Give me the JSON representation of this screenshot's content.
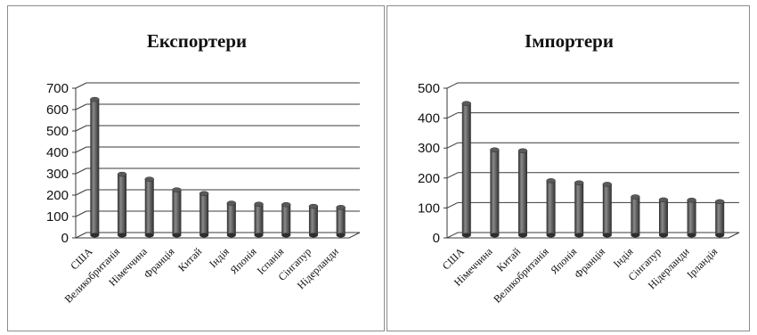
{
  "chart_data": [
    {
      "type": "bar",
      "title": "Експортери",
      "categories": [
        "США",
        "Великобританія",
        "Німеччина",
        "Франція",
        "Китай",
        "Індія",
        "Японія",
        "Іспанія",
        "Сінгапур",
        "Нідерланди"
      ],
      "values": [
        635,
        285,
        262,
        212,
        195,
        150,
        145,
        143,
        135,
        130
      ],
      "ylim": [
        0,
        700
      ],
      "yticks": [
        "0",
        "100",
        "200",
        "300",
        "400",
        "500",
        "600",
        "700"
      ],
      "grid": true,
      "colors": {
        "bar": "#5a5a5a",
        "bar_light": "#8a8a8a",
        "bar_dark": "#2e2e2e"
      }
    },
    {
      "type": "bar",
      "title": "Імпортери",
      "categories": [
        "США",
        "Німеччина",
        "Китай",
        "Великобританія",
        "Японія",
        "Франція",
        "Індія",
        "Сінгапур",
        "Нідерланди",
        "Ірландія"
      ],
      "values": [
        440,
        285,
        282,
        182,
        175,
        170,
        128,
        118,
        117,
        112
      ],
      "ylim": [
        0,
        500
      ],
      "yticks": [
        "0",
        "100",
        "200",
        "300",
        "400",
        "500"
      ],
      "grid": true,
      "colors": {
        "bar": "#5a5a5a",
        "bar_light": "#8a8a8a",
        "bar_dark": "#2e2e2e"
      }
    }
  ]
}
